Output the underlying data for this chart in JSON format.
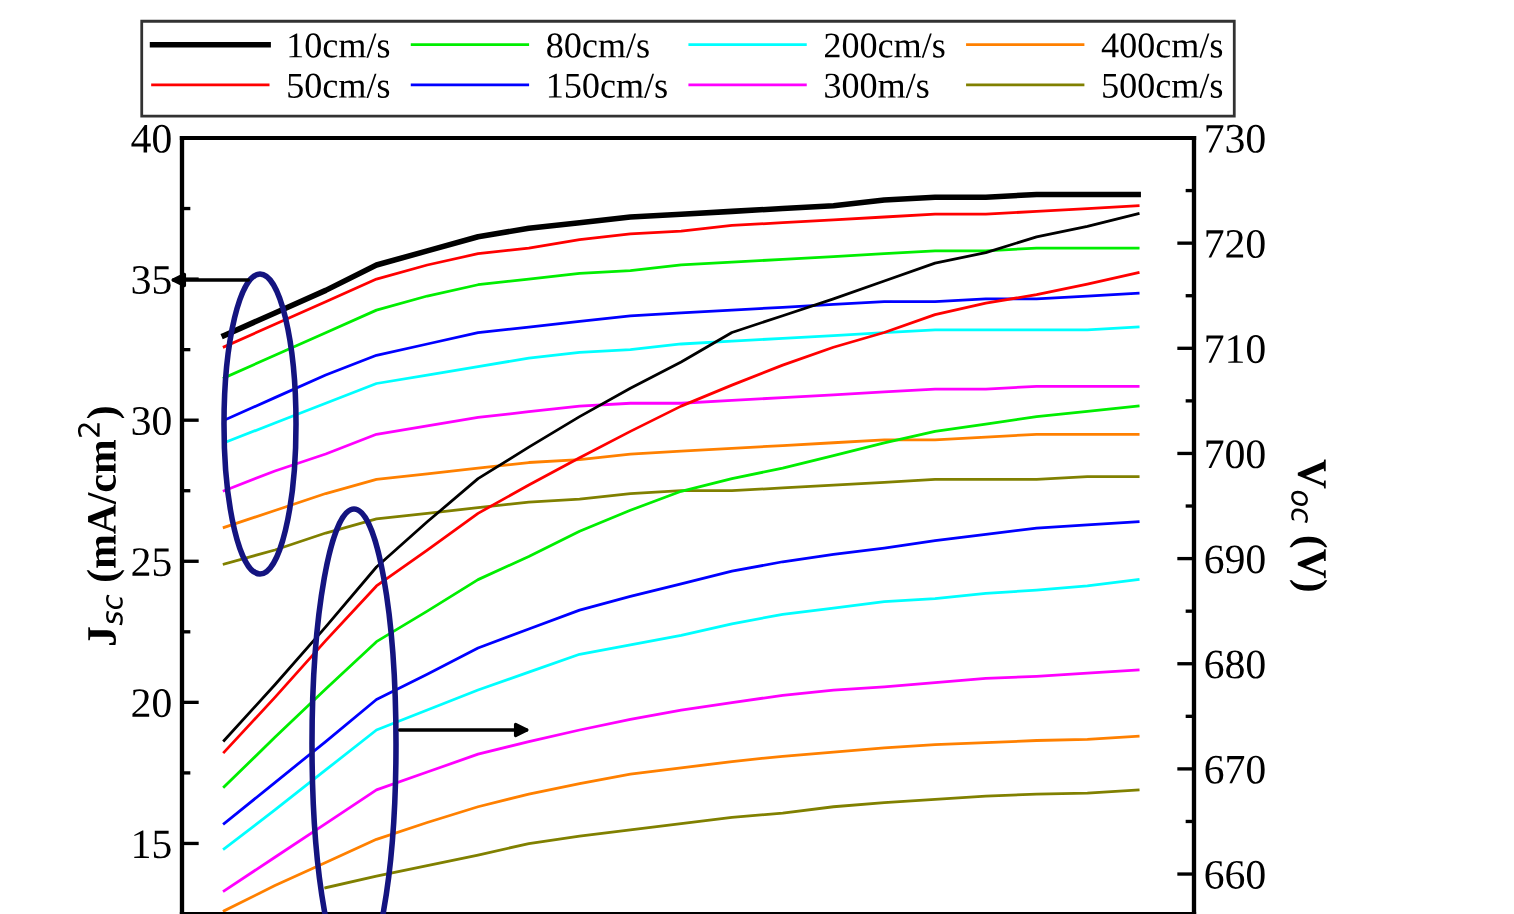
{
  "chart_data": {
    "type": "line",
    "ylabel": "J$_{sc}$ (mA/cm$^{2}$)",
    "y2label": "V$_{oc}$ (V)",
    "categories": [
      null,
      null,
      null,
      null,
      null,
      null,
      null,
      null,
      null,
      null,
      null,
      null,
      null,
      null,
      null,
      null,
      null,
      null,
      null
    ],
    "ylim": [
      12.5,
      40
    ],
    "yticks": [
      15,
      20,
      25,
      30,
      35,
      40
    ],
    "y2lim": [
      656.2,
      730
    ],
    "y2ticks": [
      660,
      670,
      680,
      690,
      700,
      710,
      720,
      730
    ],
    "legend": "top",
    "line_style": "solid",
    "series": [
      {
        "name": "10cm/s",
        "color": "#000000",
        "values": [
          33.0,
          33.8,
          34.6,
          35.5,
          36.0,
          36.5,
          36.8,
          37.0,
          37.2,
          37.3,
          37.4,
          37.5,
          37.6,
          37.8,
          37.9,
          37.9,
          38.0,
          38.0,
          38.0
        ]
      },
      {
        "name": "50cm/s",
        "color": "#ff0000",
        "values": [
          32.6,
          33.4,
          34.2,
          35.0,
          35.5,
          35.9,
          36.1,
          36.4,
          36.6,
          36.7,
          36.9,
          37.0,
          37.1,
          37.2,
          37.3,
          37.3,
          37.4,
          37.5,
          37.6
        ]
      },
      {
        "name": "80cm/s",
        "color": "#00ee00",
        "values": [
          31.5,
          32.3,
          33.1,
          33.9,
          34.4,
          34.8,
          35.0,
          35.2,
          35.3,
          35.5,
          35.6,
          35.7,
          35.8,
          35.9,
          36.0,
          36.0,
          36.1,
          36.1,
          36.1
        ]
      },
      {
        "name": "150cm/s",
        "color": "#0000ff",
        "values": [
          30.0,
          30.8,
          31.6,
          32.3,
          32.7,
          33.1,
          33.3,
          33.5,
          33.7,
          33.8,
          33.9,
          34.0,
          34.1,
          34.2,
          34.2,
          34.3,
          34.3,
          34.4,
          34.5
        ]
      },
      {
        "name": "200cm/s",
        "color": "#00ffff",
        "values": [
          29.2,
          29.9,
          30.6,
          31.3,
          31.6,
          31.9,
          32.2,
          32.4,
          32.5,
          32.7,
          32.8,
          32.9,
          33.0,
          33.1,
          33.2,
          33.2,
          33.2,
          33.2,
          33.3
        ]
      },
      {
        "name": "300m/s",
        "color": "#ff00ff",
        "values": [
          27.5,
          28.2,
          28.8,
          29.5,
          29.8,
          30.1,
          30.3,
          30.5,
          30.6,
          30.6,
          30.7,
          30.8,
          30.9,
          31.0,
          31.1,
          31.1,
          31.2,
          31.2,
          31.2
        ]
      },
      {
        "name": "400cm/s",
        "color": "#ff8000",
        "values": [
          26.2,
          26.8,
          27.4,
          27.9,
          28.1,
          28.3,
          28.5,
          28.6,
          28.8,
          28.9,
          29.0,
          29.1,
          29.2,
          29.3,
          29.3,
          29.4,
          29.5,
          29.5,
          29.5
        ]
      },
      {
        "name": "500cm/s",
        "color": "#808000",
        "values": [
          24.9,
          25.4,
          26.0,
          26.5,
          26.7,
          26.9,
          27.1,
          27.2,
          27.4,
          27.5,
          27.5,
          27.6,
          27.7,
          27.8,
          27.9,
          27.9,
          27.9,
          28.0,
          28.0
        ]
      },
      {
        "axis": "y2",
        "color": "#000000",
        "values": [
          672.7,
          678.0,
          683.5,
          689.2,
          693.5,
          697.6,
          700.6,
          703.5,
          706.2,
          708.7,
          711.5,
          713.1,
          714.7,
          716.4,
          718.1,
          719.1,
          720.6,
          721.6,
          722.8
        ]
      },
      {
        "axis": "y2",
        "color": "#ff0000",
        "values": [
          671.6,
          676.8,
          682.2,
          687.4,
          690.8,
          694.3,
          697.0,
          699.6,
          702.1,
          704.5,
          706.5,
          708.4,
          710.1,
          711.5,
          713.2,
          714.3,
          715.1,
          716.1,
          717.2
        ]
      },
      {
        "axis": "y2",
        "color": "#00ee00",
        "values": [
          668.3,
          673.0,
          677.6,
          682.1,
          685.0,
          688.0,
          690.2,
          692.6,
          694.6,
          696.4,
          697.6,
          698.6,
          699.8,
          701.0,
          702.1,
          702.8,
          703.5,
          704.0,
          704.5
        ]
      },
      {
        "axis": "y2",
        "color": "#0000ff",
        "values": [
          664.8,
          668.7,
          672.6,
          676.6,
          679.0,
          681.5,
          683.3,
          685.1,
          686.4,
          687.6,
          688.8,
          689.7,
          690.4,
          691.0,
          691.7,
          692.3,
          692.9,
          693.2,
          693.5
        ]
      },
      {
        "axis": "y2",
        "color": "#00ffff",
        "values": [
          662.4,
          666.1,
          669.9,
          673.7,
          675.6,
          677.5,
          679.2,
          680.9,
          681.8,
          682.7,
          683.8,
          684.7,
          685.3,
          685.9,
          686.2,
          686.7,
          687.0,
          687.4,
          688.0
        ]
      },
      {
        "axis": "y2",
        "color": "#ff00ff",
        "values": [
          658.4,
          661.6,
          664.8,
          668.0,
          669.7,
          671.4,
          672.6,
          673.7,
          674.7,
          675.6,
          676.3,
          677.0,
          677.5,
          677.8,
          678.2,
          678.6,
          678.8,
          679.1,
          679.4
        ]
      },
      {
        "axis": "y2",
        "color": "#ff8000",
        "values": [
          656.5,
          658.9,
          661.1,
          663.3,
          664.9,
          666.4,
          667.6,
          668.6,
          669.5,
          670.1,
          670.7,
          671.2,
          671.6,
          672.0,
          672.3,
          672.5,
          672.7,
          672.8,
          673.1
        ]
      },
      {
        "axis": "y2",
        "color": "#808000",
        "values": [
          null,
          null,
          658.7,
          659.8,
          660.8,
          661.8,
          662.9,
          663.6,
          664.2,
          664.8,
          665.4,
          665.8,
          666.4,
          666.8,
          667.1,
          667.4,
          667.6,
          667.7,
          668.0
        ]
      }
    ]
  }
}
